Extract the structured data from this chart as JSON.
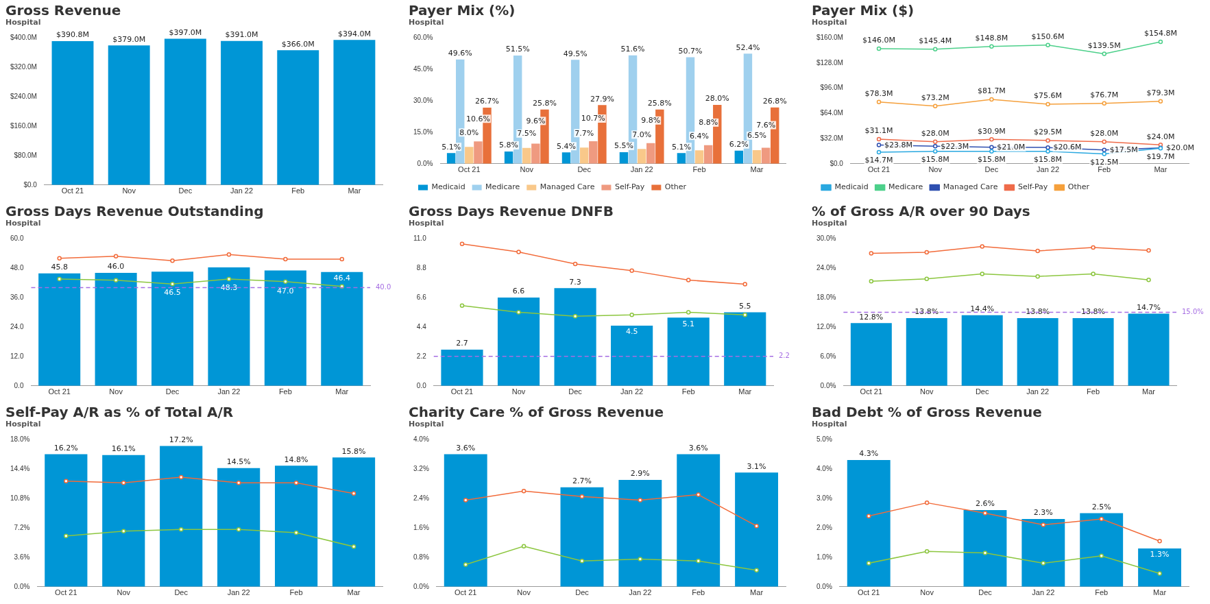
{
  "chart_data": [
    {
      "type": "bar",
      "title": "Gross Revenue",
      "subtitle": "Hospital",
      "categories": [
        "Oct 21",
        "Nov",
        "Dec",
        "Jan 22",
        "Feb",
        "Mar"
      ],
      "values": [
        390.8,
        379.0,
        397.0,
        391.0,
        366.0,
        394.0
      ],
      "value_labels": [
        "$390.8M",
        "$379.0M",
        "$397.0M",
        "$391.0M",
        "$366.0M",
        "$394.0M"
      ],
      "color": "#0096d6",
      "ylim": [
        0,
        400
      ],
      "yticks": [
        {
          "value": 0,
          "label": "$0.0"
        },
        {
          "value": 80,
          "label": "$80.0M"
        },
        {
          "value": 160,
          "label": "$160.0M"
        },
        {
          "value": 240,
          "label": "$240.0M"
        },
        {
          "value": 320,
          "label": "$320.0M"
        },
        {
          "value": 400,
          "label": "$400.0M"
        }
      ]
    },
    {
      "type": "bar",
      "title": "Payer Mix (%)",
      "subtitle": "Hospital",
      "categories": [
        "Oct 21",
        "Nov",
        "Dec",
        "Jan 22",
        "Feb",
        "Mar"
      ],
      "legend": "bottom",
      "ylim": [
        0,
        60
      ],
      "yticks": [
        {
          "value": 0,
          "label": "0.0%"
        },
        {
          "value": 15,
          "label": "15.0%"
        },
        {
          "value": 30,
          "label": "30.0%"
        },
        {
          "value": 45,
          "label": "45.0%"
        },
        {
          "value": 60,
          "label": "60.0%"
        }
      ],
      "series": [
        {
          "name": "Medicaid",
          "color": "#0096d6",
          "values": [
            5.1,
            5.8,
            5.4,
            5.5,
            5.1,
            6.2
          ],
          "value_labels": [
            "5.1%",
            "5.8%",
            "5.4%",
            "5.5%",
            "5.1%",
            "6.2%"
          ]
        },
        {
          "name": "Medicare",
          "color": "#9fd0ee",
          "values": [
            49.6,
            51.5,
            49.5,
            51.6,
            50.7,
            52.4
          ],
          "value_labels": [
            "49.6%",
            "51.5%",
            "49.5%",
            "51.6%",
            "50.7%",
            "52.4%"
          ]
        },
        {
          "name": "Managed Care",
          "color": "#f9c88a",
          "values": [
            8.0,
            7.5,
            7.7,
            7.0,
            6.4,
            6.5
          ],
          "value_labels": [
            "8.0%",
            "7.5%",
            "7.7%",
            "7.0%",
            "6.4%",
            "6.5%"
          ]
        },
        {
          "name": "Self-Pay",
          "color": "#ef9a80",
          "values": [
            10.6,
            9.6,
            10.7,
            9.8,
            8.8,
            7.6
          ],
          "value_labels": [
            "10.6%",
            "9.6%",
            "10.7%",
            "9.8%",
            "8.8%",
            "7.6%"
          ]
        },
        {
          "name": "Other",
          "color": "#e8703a",
          "values": [
            26.7,
            25.8,
            27.9,
            25.8,
            28.0,
            26.8
          ],
          "value_labels": [
            "26.7%",
            "25.8%",
            "27.9%",
            "25.8%",
            "28.0%",
            "26.8%"
          ]
        }
      ]
    },
    {
      "type": "line",
      "title": "Payer Mix ($)",
      "subtitle": "Hospital",
      "categories": [
        "Oct 21",
        "Nov",
        "Dec",
        "Jan 22",
        "Feb",
        "Mar"
      ],
      "legend": "bottom",
      "marker": "circle",
      "ylim": [
        0,
        160
      ],
      "yticks": [
        {
          "value": 0,
          "label": "$0.0"
        },
        {
          "value": 32,
          "label": "$32.0M"
        },
        {
          "value": 64,
          "label": "$64.0M"
        },
        {
          "value": 96,
          "label": "$96.0M"
        },
        {
          "value": 128,
          "label": "$128.0M"
        },
        {
          "value": 160,
          "label": "$160.0M"
        }
      ],
      "series": [
        {
          "name": "Medicaid",
          "color": "#29a8e0",
          "values": [
            14.7,
            15.8,
            15.8,
            15.8,
            12.5,
            19.7
          ],
          "value_labels": [
            "$14.7M",
            "$15.8M",
            "$15.8M",
            "$15.8M",
            "$12.5M",
            "$19.7M"
          ]
        },
        {
          "name": "Medicare",
          "color": "#4cd08a",
          "values": [
            146.0,
            145.4,
            148.8,
            150.6,
            139.5,
            154.8
          ],
          "value_labels": [
            "$146.0M",
            "$145.4M",
            "$148.8M",
            "$150.6M",
            "$139.5M",
            "$154.8M"
          ]
        },
        {
          "name": "Managed Care",
          "color": "#2e4fb0",
          "values": [
            23.8,
            22.3,
            21.0,
            20.6,
            17.5,
            20.0
          ],
          "value_labels": [
            "$23.8M",
            "$22.3M",
            "$21.0M",
            "$20.6M",
            "$17.5M",
            "$20.0M"
          ]
        },
        {
          "name": "Self-Pay",
          "color": "#ef6b4a",
          "values": [
            31.1,
            28.0,
            30.9,
            29.5,
            28.0,
            24.0
          ],
          "value_labels": [
            "$31.1M",
            "$28.0M",
            "$30.9M",
            "$29.5M",
            "$28.0M",
            "$24.0M"
          ]
        },
        {
          "name": "Other",
          "color": "#f5a03c",
          "values": [
            78.3,
            73.2,
            81.7,
            75.6,
            76.7,
            79.3
          ],
          "value_labels": [
            "$78.3M",
            "$73.2M",
            "$81.7M",
            "$75.6M",
            "$76.7M",
            "$79.3M"
          ]
        }
      ]
    },
    {
      "type": "bar",
      "title": "Gross Days Revenue Outstanding",
      "subtitle": "Hospital",
      "categories": [
        "Oct 21",
        "Nov",
        "Dec",
        "Jan 22",
        "Feb",
        "Mar"
      ],
      "marker": "circle",
      "ylim": [
        0,
        60
      ],
      "yticks": [
        {
          "value": 0,
          "label": "0.0"
        },
        {
          "value": 12,
          "label": "12.0"
        },
        {
          "value": 24,
          "label": "24.0"
        },
        {
          "value": 36,
          "label": "36.0"
        },
        {
          "value": 48,
          "label": "48.0"
        },
        {
          "value": 60,
          "label": "60.0"
        }
      ],
      "ref_lines": [
        {
          "axis": "y",
          "value": 40.0,
          "label": "40.0",
          "color": "#a56de2",
          "line_style": "dashed"
        }
      ],
      "series": [
        {
          "type": "bar",
          "color": "#0096d6",
          "values": [
            45.8,
            46.0,
            46.5,
            48.3,
            47.0,
            46.4
          ],
          "value_labels": [
            "45.8",
            "46.0",
            "46.5",
            "48.3",
            "47.0",
            "46.4"
          ]
        },
        {
          "type": "line",
          "color": "#f26b3a",
          "values": [
            52.0,
            52.8,
            51.0,
            53.5,
            51.6,
            51.6
          ]
        },
        {
          "type": "line",
          "color": "#8cc63f",
          "values": [
            43.5,
            43.0,
            41.5,
            43.5,
            42.5,
            40.5
          ]
        }
      ]
    },
    {
      "type": "bar",
      "title": "Gross Days Revenue DNFB",
      "subtitle": "Hospital",
      "categories": [
        "Oct 21",
        "Nov",
        "Dec",
        "Jan 22",
        "Feb",
        "Mar"
      ],
      "marker": "circle",
      "ylim": [
        0,
        11
      ],
      "yticks": [
        {
          "value": 0,
          "label": "0.0"
        },
        {
          "value": 2.2,
          "label": "2.2"
        },
        {
          "value": 4.4,
          "label": "4.4"
        },
        {
          "value": 6.6,
          "label": "6.6"
        },
        {
          "value": 8.8,
          "label": "8.8"
        },
        {
          "value": 11,
          "label": "11.0"
        }
      ],
      "ref_lines": [
        {
          "axis": "y",
          "value": 2.2,
          "label": "2.2",
          "color": "#a56de2",
          "line_style": "dashed"
        }
      ],
      "series": [
        {
          "type": "bar",
          "color": "#0096d6",
          "values": [
            2.7,
            6.6,
            7.3,
            4.5,
            5.1,
            5.5
          ],
          "value_labels": [
            "2.7",
            "6.6",
            "7.3",
            "4.5",
            "5.1",
            "5.5"
          ]
        },
        {
          "type": "line",
          "color": "#f26b3a",
          "values": [
            10.6,
            10.0,
            9.1,
            8.6,
            7.9,
            7.6
          ]
        },
        {
          "type": "line",
          "color": "#8cc63f",
          "values": [
            6.0,
            5.5,
            5.2,
            5.3,
            5.5,
            5.3
          ]
        }
      ]
    },
    {
      "type": "bar",
      "title": "% of Gross A/R over 90 Days",
      "subtitle": "Hospital",
      "categories": [
        "Oct 21",
        "Nov",
        "Dec",
        "Jan 22",
        "Feb",
        "Mar"
      ],
      "marker": "circle",
      "ylim": [
        0,
        30
      ],
      "yticks": [
        {
          "value": 0,
          "label": "0.0%"
        },
        {
          "value": 6,
          "label": "6.0%"
        },
        {
          "value": 12,
          "label": "12.0%"
        },
        {
          "value": 18,
          "label": "18.0%"
        },
        {
          "value": 24,
          "label": "24.0%"
        },
        {
          "value": 30,
          "label": "30.0%"
        }
      ],
      "ref_lines": [
        {
          "axis": "y",
          "value": 15.0,
          "label": "15.0%",
          "color": "#a56de2",
          "line_style": "dashed"
        }
      ],
      "series": [
        {
          "type": "bar",
          "color": "#0096d6",
          "values": [
            12.8,
            13.8,
            14.4,
            13.8,
            13.8,
            14.7
          ],
          "value_labels": [
            "12.8%",
            "13.8%",
            "14.4%",
            "13.8%",
            "13.8%",
            "14.7%"
          ]
        },
        {
          "type": "line",
          "color": "#f26b3a",
          "values": [
            27.0,
            27.2,
            28.4,
            27.5,
            28.2,
            27.6
          ]
        },
        {
          "type": "line",
          "color": "#8cc63f",
          "values": [
            21.3,
            21.8,
            22.8,
            22.3,
            22.8,
            21.6
          ]
        }
      ]
    },
    {
      "type": "bar",
      "title": "Self-Pay A/R as % of Total A/R",
      "subtitle": "Hospital",
      "categories": [
        "Oct 21",
        "Nov",
        "Dec",
        "Jan 22",
        "Feb",
        "Mar"
      ],
      "marker": "circle",
      "ylim": [
        0,
        18
      ],
      "yticks": [
        {
          "value": 0,
          "label": "0.0%"
        },
        {
          "value": 3.6,
          "label": "3.6%"
        },
        {
          "value": 7.2,
          "label": "7.2%"
        },
        {
          "value": 10.8,
          "label": "10.8%"
        },
        {
          "value": 14.4,
          "label": "14.4%"
        },
        {
          "value": 18,
          "label": "18.0%"
        }
      ],
      "series": [
        {
          "type": "bar",
          "color": "#0096d6",
          "values": [
            16.2,
            16.1,
            17.2,
            14.5,
            14.8,
            15.8
          ],
          "value_labels": [
            "16.2%",
            "16.1%",
            "17.2%",
            "14.5%",
            "14.8%",
            "15.8%"
          ]
        },
        {
          "type": "line",
          "color": "#f26b3a",
          "values": [
            12.9,
            12.7,
            13.4,
            12.7,
            12.7,
            11.4
          ]
        },
        {
          "type": "line",
          "color": "#8cc63f",
          "values": [
            6.2,
            6.8,
            7.0,
            7.0,
            6.6,
            4.9
          ]
        }
      ]
    },
    {
      "type": "bar",
      "title": "Charity Care % of Gross Revenue",
      "subtitle": "Hospital",
      "categories": [
        "Oct 21",
        "Nov",
        "Dec",
        "Jan 22",
        "Feb",
        "Mar"
      ],
      "marker": "circle",
      "ylim": [
        0,
        4
      ],
      "yticks": [
        {
          "value": 0,
          "label": "0.0%"
        },
        {
          "value": 0.8,
          "label": "0.8%"
        },
        {
          "value": 1.6,
          "label": "1.6%"
        },
        {
          "value": 2.4,
          "label": "2.4%"
        },
        {
          "value": 3.2,
          "label": "3.2%"
        },
        {
          "value": 4,
          "label": "4.0%"
        }
      ],
      "series": [
        {
          "type": "bar",
          "color": "#0096d6",
          "values": [
            3.6,
            null,
            2.7,
            2.9,
            3.6,
            3.1
          ],
          "value_labels": [
            "3.6%",
            null,
            "2.7%",
            "2.9%",
            "3.6%",
            "3.1%"
          ]
        },
        {
          "type": "line",
          "color": "#f26b3a",
          "values": [
            2.35,
            2.6,
            2.45,
            2.35,
            2.5,
            1.65
          ]
        },
        {
          "type": "line",
          "color": "#8cc63f",
          "values": [
            0.6,
            1.1,
            0.7,
            0.75,
            0.7,
            0.45
          ]
        }
      ]
    },
    {
      "type": "bar",
      "title": "Bad Debt % of Gross Revenue",
      "subtitle": "Hospital",
      "categories": [
        "Oct 21",
        "Nov",
        "Dec",
        "Jan 22",
        "Feb",
        "Mar"
      ],
      "marker": "circle",
      "ylim": [
        0,
        5
      ],
      "yticks": [
        {
          "value": 0,
          "label": "0.0%"
        },
        {
          "value": 1,
          "label": "1.0%"
        },
        {
          "value": 2,
          "label": "2.0%"
        },
        {
          "value": 3,
          "label": "3.0%"
        },
        {
          "value": 4,
          "label": "4.0%"
        },
        {
          "value": 5,
          "label": "5.0%"
        }
      ],
      "series": [
        {
          "type": "bar",
          "color": "#0096d6",
          "values": [
            4.3,
            null,
            2.6,
            2.3,
            2.5,
            1.3
          ],
          "value_labels": [
            "4.3%",
            null,
            "2.6%",
            "2.3%",
            "2.5%",
            "1.3%"
          ]
        },
        {
          "type": "line",
          "color": "#f26b3a",
          "values": [
            2.4,
            2.85,
            2.5,
            2.1,
            2.3,
            1.55
          ]
        },
        {
          "type": "line",
          "color": "#8cc63f",
          "values": [
            0.8,
            1.2,
            1.15,
            0.8,
            1.05,
            0.45
          ]
        }
      ]
    }
  ]
}
